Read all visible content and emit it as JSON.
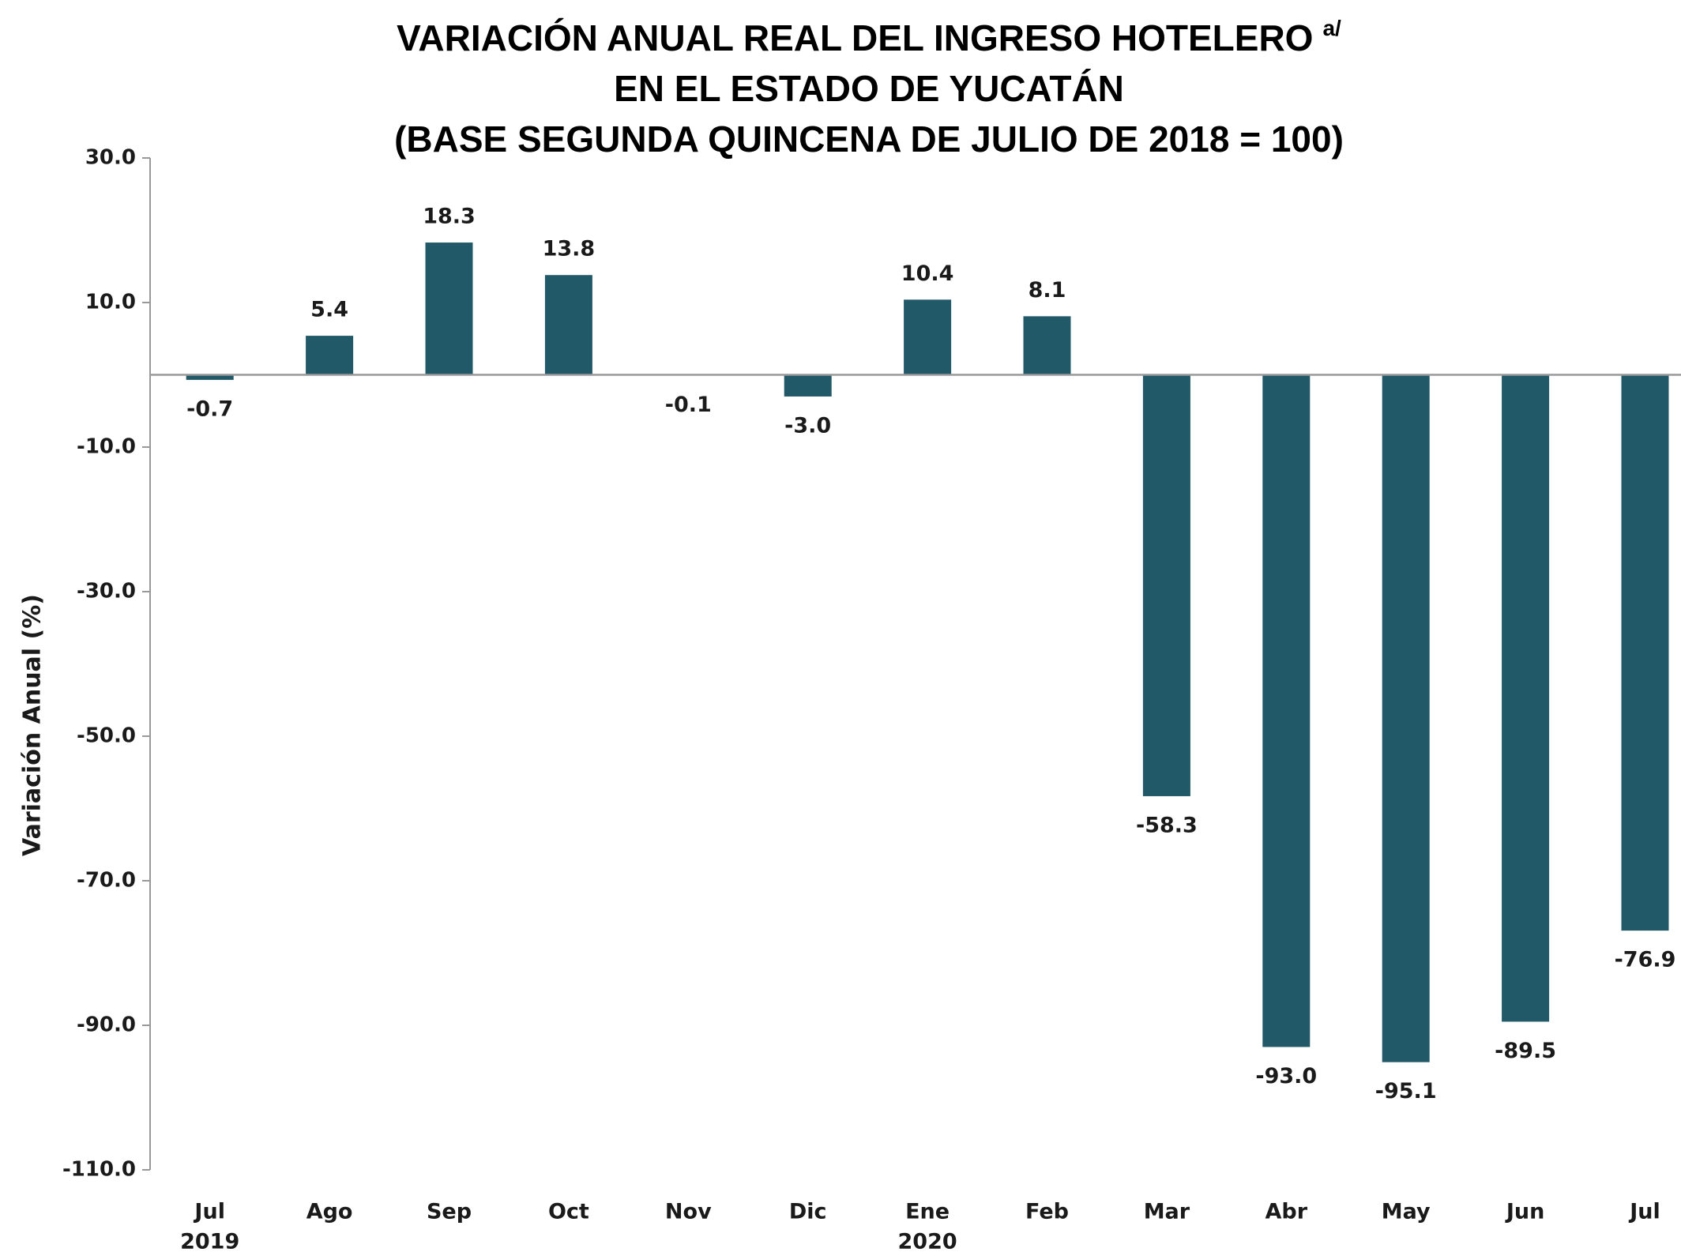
{
  "chart_data": {
    "type": "bar",
    "title": [
      "VARIACIÓN ANUAL REAL DEL INGRESO HOTELERO",
      "EN EL ESTADO DE YUCATÁN",
      "(BASE SEGUNDA QUINCENA DE JULIO DE 2018 = 100)"
    ],
    "title_note": "a/",
    "y_label": "Variación Anual (%)",
    "categories": [
      "Jul",
      "Ago",
      "Sep",
      "Oct",
      "Nov",
      "Dic",
      "Ene",
      "Feb",
      "Mar",
      "Abr",
      "May",
      "Jun",
      "Jul"
    ],
    "category_years": [
      "2019",
      null,
      null,
      null,
      null,
      null,
      "2020",
      null,
      null,
      null,
      null,
      null,
      null
    ],
    "values": [
      -0.7,
      5.4,
      18.3,
      13.8,
      -0.1,
      -3.0,
      10.4,
      8.1,
      -58.3,
      -93.0,
      -95.1,
      -89.5,
      -76.9
    ],
    "value_labels": [
      "-0.7",
      "5.4",
      "18.3",
      "13.8",
      "-0.1",
      "-3.0",
      "10.4",
      "8.1",
      "-58.3",
      "-93.0",
      "-95.1",
      "-89.5",
      "-76.9"
    ],
    "color": "#215968",
    "ylim": [
      -110,
      30
    ],
    "yticks": [
      {
        "value": 30,
        "label": "30.0"
      },
      {
        "value": 10,
        "label": "10.0"
      },
      {
        "value": -10,
        "label": "-10.0"
      },
      {
        "value": -30,
        "label": "-30.0"
      },
      {
        "value": -50,
        "label": "-50.0"
      },
      {
        "value": -70,
        "label": "-70.0"
      },
      {
        "value": -90,
        "label": "-90.0"
      },
      {
        "value": -110,
        "label": "-110.0"
      }
    ],
    "grid": false
  }
}
